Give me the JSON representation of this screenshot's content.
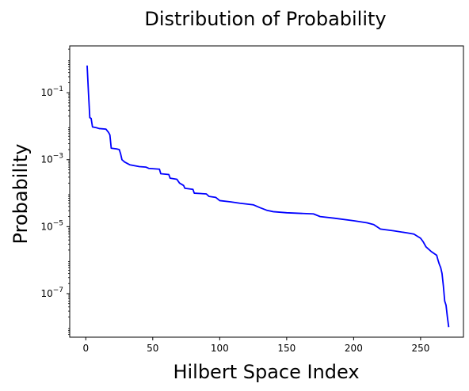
{
  "chart_data": {
    "type": "line",
    "title": "Distribution of Probability",
    "xlabel": "Hilbert Space Index",
    "ylabel": "Probability",
    "yscale": "log",
    "xlim": [
      -12,
      282
    ],
    "ylim": [
      5e-09,
      2.5
    ],
    "x_ticks": [
      0,
      50,
      100,
      150,
      200,
      250
    ],
    "y_ticks": [
      {
        "value": 1e-07,
        "base": "10",
        "exp": "−7"
      },
      {
        "value": 1e-05,
        "base": "10",
        "exp": "−5"
      },
      {
        "value": 0.001,
        "base": "10",
        "exp": "−3"
      },
      {
        "value": 0.1,
        "base": "10",
        "exp": "−1"
      }
    ],
    "grid": false,
    "series": [
      {
        "color": "#0000ff",
        "points": [
          [
            1,
            0.65
          ],
          [
            2,
            0.1
          ],
          [
            3,
            0.018
          ],
          [
            4,
            0.017
          ],
          [
            5,
            0.0095
          ],
          [
            8,
            0.009
          ],
          [
            10,
            0.0085
          ],
          [
            15,
            0.0082
          ],
          [
            17,
            0.0065
          ],
          [
            18,
            0.0055
          ],
          [
            19,
            0.0022
          ],
          [
            23,
            0.0021
          ],
          [
            25,
            0.002
          ],
          [
            26,
            0.0015
          ],
          [
            27,
            0.001
          ],
          [
            29,
            0.00085
          ],
          [
            33,
            0.0007
          ],
          [
            40,
            0.00062
          ],
          [
            45,
            0.0006
          ],
          [
            47,
            0.00055
          ],
          [
            55,
            0.00052
          ],
          [
            56,
            0.00038
          ],
          [
            62,
            0.00036
          ],
          [
            63,
            0.00028
          ],
          [
            68,
            0.00026
          ],
          [
            70,
            0.0002
          ],
          [
            73,
            0.00017
          ],
          [
            74,
            0.00014
          ],
          [
            80,
            0.00013
          ],
          [
            81,
            0.0001
          ],
          [
            90,
            9.5e-05
          ],
          [
            92,
            8e-05
          ],
          [
            97,
            7.5e-05
          ],
          [
            100,
            6e-05
          ],
          [
            108,
            5.5e-05
          ],
          [
            115,
            5e-05
          ],
          [
            125,
            4.5e-05
          ],
          [
            130,
            3.7e-05
          ],
          [
            135,
            3.1e-05
          ],
          [
            140,
            2.8e-05
          ],
          [
            150,
            2.6e-05
          ],
          [
            170,
            2.4e-05
          ],
          [
            175,
            2e-05
          ],
          [
            185,
            1.8e-05
          ],
          [
            200,
            1.5e-05
          ],
          [
            210,
            1.3e-05
          ],
          [
            215,
            1.15e-05
          ],
          [
            220,
            8.5e-06
          ],
          [
            230,
            7.5e-06
          ],
          [
            240,
            6.5e-06
          ],
          [
            245,
            6e-06
          ],
          [
            250,
            4.5e-06
          ],
          [
            252,
            3.5e-06
          ],
          [
            254,
            2.5e-06
          ],
          [
            258,
            1.8e-06
          ],
          [
            262,
            1.4e-06
          ],
          [
            263,
            1e-06
          ],
          [
            264,
            7.5e-07
          ],
          [
            265,
            6e-07
          ],
          [
            266,
            4e-07
          ],
          [
            267,
            1.7e-07
          ],
          [
            268,
            6e-08
          ],
          [
            269,
            4.5e-08
          ],
          [
            270,
            2e-08
          ],
          [
            271,
            1e-08
          ]
        ]
      }
    ]
  }
}
